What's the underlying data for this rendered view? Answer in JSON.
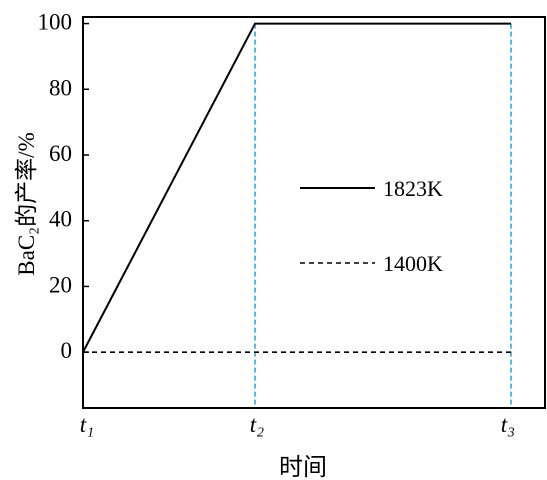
{
  "chart_data": {
    "type": "line",
    "xlabel": "时间",
    "ylabel": "BaC₂的产率/%",
    "categories": [
      "t₁",
      "t₂",
      "t₃"
    ],
    "yticks": [
      0,
      20,
      40,
      60,
      80,
      100
    ],
    "ylim": [
      -17,
      102
    ],
    "grid": false,
    "legend_position": "center",
    "series": [
      {
        "name": "1823K",
        "values": [
          0,
          100,
          100
        ],
        "line_style": "solid",
        "color": "#000000"
      },
      {
        "name": "1400K",
        "values": [
          0,
          0,
          0
        ],
        "line_style": "dashed",
        "color": "#000000"
      }
    ],
    "reference_lines": {
      "orientation": "vertical",
      "at": [
        "t₂",
        "t₃"
      ],
      "line_style": "dashed",
      "color": "#29abe2"
    }
  }
}
